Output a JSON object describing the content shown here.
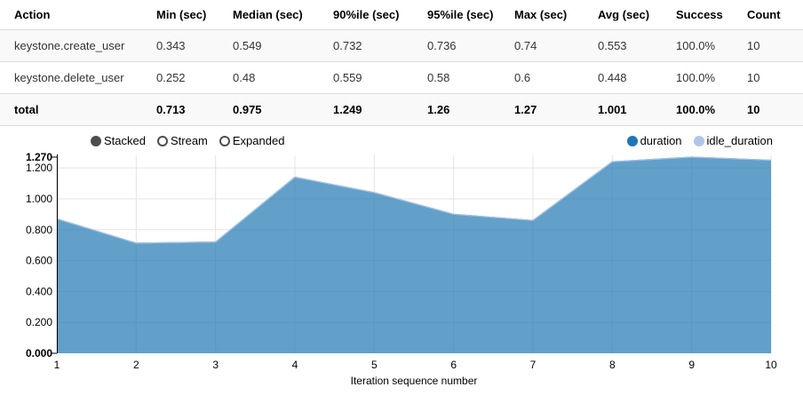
{
  "table": {
    "headers": [
      "Action",
      "Min (sec)",
      "Median (sec)",
      "90%ile (sec)",
      "95%ile (sec)",
      "Max (sec)",
      "Avg (sec)",
      "Success",
      "Count"
    ],
    "rows": [
      {
        "cells": [
          "keystone.create_user",
          "0.343",
          "0.549",
          "0.732",
          "0.736",
          "0.74",
          "0.553",
          "100.0%",
          "10"
        ],
        "bold": false
      },
      {
        "cells": [
          "keystone.delete_user",
          "0.252",
          "0.48",
          "0.559",
          "0.58",
          "0.6",
          "0.448",
          "100.0%",
          "10"
        ],
        "bold": false
      },
      {
        "cells": [
          "total",
          "0.713",
          "0.975",
          "1.249",
          "1.26",
          "1.27",
          "1.001",
          "100.0%",
          "10"
        ],
        "bold": true
      }
    ]
  },
  "controls": {
    "options": [
      {
        "label": "Stacked",
        "selected": true
      },
      {
        "label": "Stream",
        "selected": false
      },
      {
        "label": "Expanded",
        "selected": false
      }
    ]
  },
  "legend": {
    "items": [
      {
        "label": "duration",
        "color": "#1f77b4"
      },
      {
        "label": "idle_duration",
        "color": "#aec7e8"
      }
    ]
  },
  "chart_data": {
    "type": "area",
    "stacked": true,
    "title": "",
    "xlabel": "Iteration sequence number",
    "ylabel": "",
    "x": [
      1,
      2,
      3,
      4,
      5,
      6,
      7,
      8,
      9,
      10
    ],
    "series": [
      {
        "name": "duration",
        "color": "#1f77b4",
        "values": [
          0.87,
          0.713,
          0.72,
          1.14,
          1.04,
          0.9,
          0.86,
          1.24,
          1.27,
          1.25
        ]
      },
      {
        "name": "idle_duration",
        "color": "#aec7e8",
        "values": [
          0,
          0,
          0,
          0,
          0,
          0,
          0,
          0,
          0,
          0
        ]
      }
    ],
    "ylim": [
      0,
      1.27
    ],
    "grid": true,
    "legend_position": "top-right",
    "area_opacity": 0.7,
    "y_axis": {
      "min": {
        "label": "0.000",
        "value": 0
      },
      "max": {
        "label": "1.270",
        "value": 1.27
      },
      "ticks": [
        {
          "label": "0.200",
          "value": 0.2
        },
        {
          "label": "0.400",
          "value": 0.4
        },
        {
          "label": "0.600",
          "value": 0.6
        },
        {
          "label": "0.800",
          "value": 0.8
        },
        {
          "label": "1.000",
          "value": 1.0
        },
        {
          "label": "1.200",
          "value": 1.2
        }
      ]
    },
    "x_axis": {
      "tick_labels": [
        "1",
        "2",
        "3",
        "4",
        "5",
        "6",
        "7",
        "8",
        "9",
        "10"
      ],
      "title": "Iteration sequence number"
    }
  }
}
